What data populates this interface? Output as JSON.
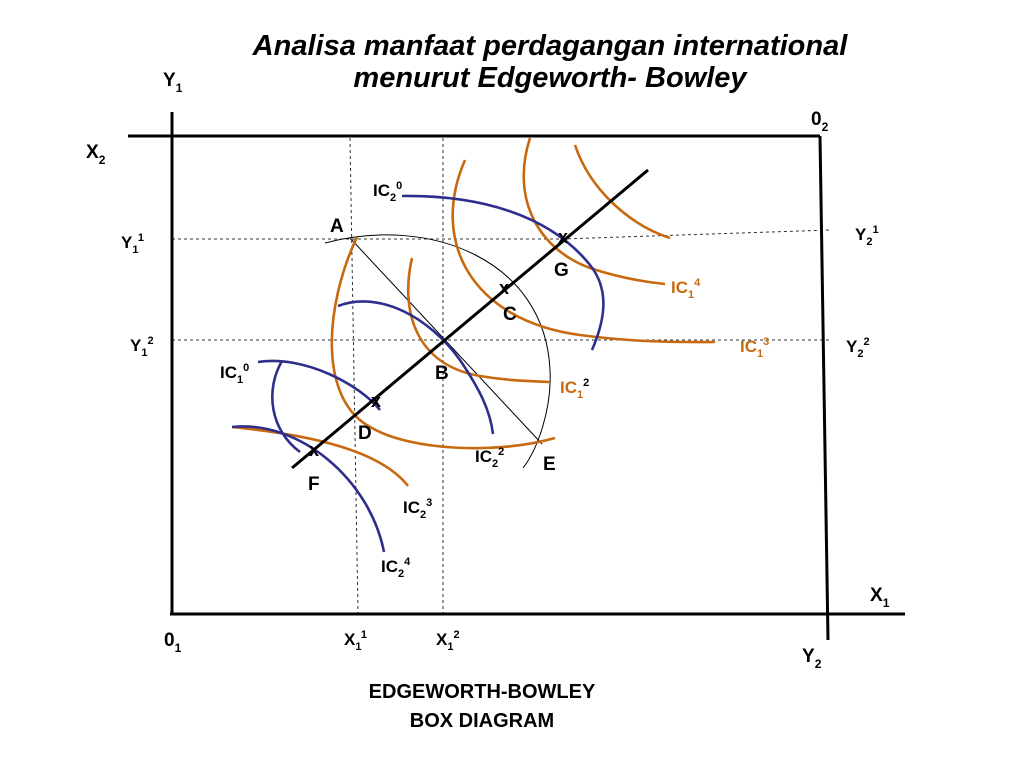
{
  "title": {
    "line1": "Analisa manfaat perdagangan international",
    "line2": "menurut Edgeworth- Bowley"
  },
  "caption": {
    "line1": "EDGEWORTH-BOWLEY",
    "line2": "BOX DIAGRAM"
  },
  "colors": {
    "axis": "#000000",
    "country1_curves": "#C8690F",
    "country2_curves": "#2E2E8C",
    "guide_lines": "#333333"
  },
  "axis_labels": {
    "y1_top": {
      "main": "Y",
      "sub": "1",
      "sup": ""
    },
    "x2": {
      "main": "X",
      "sub": "2",
      "sup": ""
    },
    "origin2": {
      "main": "0",
      "sub": "2",
      "sup": ""
    },
    "origin1": {
      "main": "0",
      "sub": "1",
      "sup": ""
    },
    "x1": {
      "main": "X",
      "sub": "1",
      "sup": ""
    },
    "y2_bottom": {
      "main": "Y",
      "sub": "2",
      "sup": ""
    },
    "y1_1": {
      "main": "Y",
      "sub": "1",
      "sup": "1"
    },
    "y1_2": {
      "main": "Y",
      "sub": "1",
      "sup": "2"
    },
    "y2_1": {
      "main": "Y",
      "sub": "2",
      "sup": "1"
    },
    "y2_2": {
      "main": "Y",
      "sub": "2",
      "sup": "2"
    },
    "x1_1": {
      "main": "X",
      "sub": "1",
      "sup": "1"
    },
    "x1_2": {
      "main": "X",
      "sub": "1",
      "sup": "2"
    }
  },
  "curve_labels": {
    "ic2_0": {
      "main": "IC",
      "sub": "2",
      "sup": "0"
    },
    "ic1_0": {
      "main": "IC",
      "sub": "1",
      "sup": "0"
    },
    "ic1_2": {
      "main": "IC",
      "sub": "1",
      "sup": "2"
    },
    "ic1_3": {
      "main": "IC",
      "sub": "1",
      "sup": "3"
    },
    "ic1_4": {
      "main": "IC",
      "sub": "1",
      "sup": "4"
    },
    "ic2_2": {
      "main": "IC",
      "sub": "2",
      "sup": "2"
    },
    "ic2_3": {
      "main": "IC",
      "sub": "2",
      "sup": "3"
    },
    "ic2_4": {
      "main": "IC",
      "sub": "2",
      "sup": "4"
    }
  },
  "points": {
    "A": "A",
    "B": "B",
    "C": "C",
    "D": "D",
    "E": "E",
    "F": "F",
    "G": "G"
  },
  "tangency_marker": "x"
}
